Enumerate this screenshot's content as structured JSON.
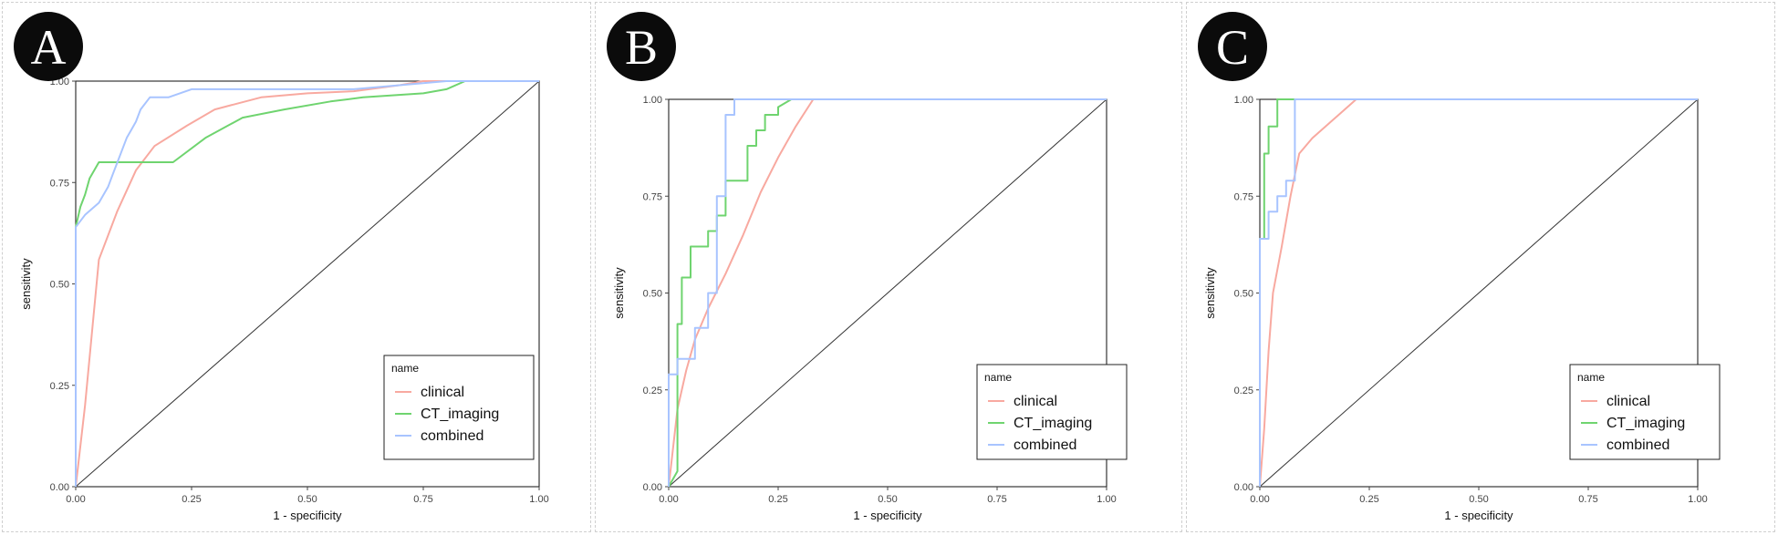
{
  "chart_data": [
    {
      "type": "line",
      "panel_label": "A",
      "xlabel": "1 - specificity",
      "ylabel": "sensitivity",
      "xlim": [
        0,
        1
      ],
      "ylim": [
        0,
        1
      ],
      "xticks": [
        "0.00",
        "0.25",
        "0.50",
        "0.75",
        "1.00"
      ],
      "yticks": [
        "0.00",
        "0.25",
        "0.50",
        "0.75",
        "1.00"
      ],
      "grid": false,
      "legend": {
        "title": "name",
        "position": "bottom-right",
        "entries": [
          "clinical",
          "CT_imaging",
          "combined"
        ]
      },
      "diagonal": true,
      "series": [
        {
          "name": "clinical",
          "color": "#f8a9a0",
          "x": [
            0,
            0.02,
            0.05,
            0.09,
            0.13,
            0.17,
            0.24,
            0.3,
            0.4,
            0.5,
            0.6,
            0.7,
            0.75,
            0.8,
            1.0
          ],
          "y": [
            0,
            0.2,
            0.56,
            0.68,
            0.78,
            0.84,
            0.89,
            0.93,
            0.96,
            0.97,
            0.975,
            0.99,
            1.0,
            1.0,
            1.0
          ]
        },
        {
          "name": "CT_imaging",
          "color": "#6fd46f",
          "x": [
            0,
            0,
            0.01,
            0.02,
            0.03,
            0.05,
            0.08,
            0.21,
            0.28,
            0.36,
            0.45,
            0.55,
            0.62,
            0.75,
            0.8,
            0.84,
            1.0
          ],
          "y": [
            0,
            0.64,
            0.69,
            0.72,
            0.76,
            0.8,
            0.8,
            0.8,
            0.86,
            0.91,
            0.93,
            0.95,
            0.96,
            0.97,
            0.98,
            1.0,
            1.0
          ]
        },
        {
          "name": "combined",
          "color": "#a8c4ff",
          "x": [
            0,
            0,
            0.02,
            0.03,
            0.05,
            0.06,
            0.07,
            0.08,
            0.09,
            0.1,
            0.11,
            0.12,
            0.13,
            0.14,
            0.16,
            0.2,
            0.25,
            0.4,
            0.6,
            0.8,
            1.0
          ],
          "y": [
            0,
            0.64,
            0.67,
            0.68,
            0.7,
            0.72,
            0.74,
            0.77,
            0.8,
            0.83,
            0.86,
            0.88,
            0.9,
            0.93,
            0.96,
            0.96,
            0.98,
            0.98,
            0.98,
            1.0,
            1.0
          ]
        }
      ]
    },
    {
      "type": "line",
      "panel_label": "B",
      "xlabel": "1 - specificity",
      "ylabel": "sensitivity",
      "xlim": [
        0,
        1
      ],
      "ylim": [
        0,
        1
      ],
      "xticks": [
        "0.00",
        "0.25",
        "0.50",
        "0.75",
        "1.00"
      ],
      "yticks": [
        "0.00",
        "0.25",
        "0.50",
        "0.75",
        "1.00"
      ],
      "grid": false,
      "legend": {
        "title": "name",
        "position": "bottom-right",
        "entries": [
          "clinical",
          "CT_imaging",
          "combined"
        ]
      },
      "diagonal": true,
      "series": [
        {
          "name": "clinical",
          "color": "#f8a9a0",
          "x": [
            0,
            0.01,
            0.02,
            0.04,
            0.06,
            0.09,
            0.13,
            0.17,
            0.21,
            0.25,
            0.29,
            0.33,
            1.0
          ],
          "y": [
            0,
            0.1,
            0.2,
            0.3,
            0.38,
            0.46,
            0.55,
            0.65,
            0.76,
            0.85,
            0.93,
            1.0,
            1.0
          ]
        },
        {
          "name": "CT_imaging",
          "color": "#6fd46f",
          "x": [
            0,
            0.02,
            0.02,
            0.03,
            0.03,
            0.05,
            0.05,
            0.09,
            0.09,
            0.11,
            0.11,
            0.13,
            0.13,
            0.18,
            0.18,
            0.2,
            0.2,
            0.22,
            0.22,
            0.25,
            0.25,
            0.28,
            1.0
          ],
          "y": [
            0,
            0.04,
            0.42,
            0.42,
            0.54,
            0.54,
            0.62,
            0.62,
            0.66,
            0.66,
            0.7,
            0.7,
            0.79,
            0.79,
            0.88,
            0.88,
            0.92,
            0.92,
            0.96,
            0.96,
            0.98,
            1.0,
            1.0
          ]
        },
        {
          "name": "combined",
          "color": "#a8c4ff",
          "x": [
            0,
            0,
            0.02,
            0.02,
            0.06,
            0.06,
            0.09,
            0.09,
            0.11,
            0.11,
            0.13,
            0.13,
            0.15,
            0.15,
            1.0
          ],
          "y": [
            0,
            0.29,
            0.29,
            0.33,
            0.33,
            0.41,
            0.41,
            0.5,
            0.5,
            0.75,
            0.75,
            0.96,
            0.96,
            1.0,
            1.0
          ]
        }
      ]
    },
    {
      "type": "line",
      "panel_label": "C",
      "xlabel": "1 - specificity",
      "ylabel": "sensitivity",
      "xlim": [
        0,
        1
      ],
      "ylim": [
        0,
        1
      ],
      "xticks": [
        "0.00",
        "0.25",
        "0.50",
        "0.75",
        "1.00"
      ],
      "yticks": [
        "0.00",
        "0.25",
        "0.50",
        "0.75",
        "1.00"
      ],
      "grid": false,
      "legend": {
        "title": "name",
        "position": "bottom-right",
        "entries": [
          "clinical",
          "CT_imaging",
          "combined"
        ]
      },
      "diagonal": true,
      "series": [
        {
          "name": "clinical",
          "color": "#f8a9a0",
          "x": [
            0,
            0.01,
            0.02,
            0.03,
            0.05,
            0.07,
            0.09,
            0.12,
            0.17,
            0.22,
            1.0
          ],
          "y": [
            0,
            0.15,
            0.35,
            0.5,
            0.62,
            0.75,
            0.86,
            0.9,
            0.95,
            1.0,
            1.0
          ]
        },
        {
          "name": "CT_imaging",
          "color": "#6fd46f",
          "x": [
            0,
            0,
            0.01,
            0.01,
            0.02,
            0.02,
            0.04,
            0.04,
            1.0
          ],
          "y": [
            0,
            0.64,
            0.64,
            0.86,
            0.86,
            0.93,
            0.93,
            1.0,
            1.0
          ]
        },
        {
          "name": "combined",
          "color": "#a8c4ff",
          "x": [
            0,
            0,
            0.02,
            0.02,
            0.04,
            0.04,
            0.06,
            0.06,
            0.08,
            0.08,
            1.0
          ],
          "y": [
            0,
            0.64,
            0.64,
            0.71,
            0.71,
            0.75,
            0.75,
            0.79,
            0.79,
            1.0,
            1.0
          ]
        }
      ]
    }
  ]
}
